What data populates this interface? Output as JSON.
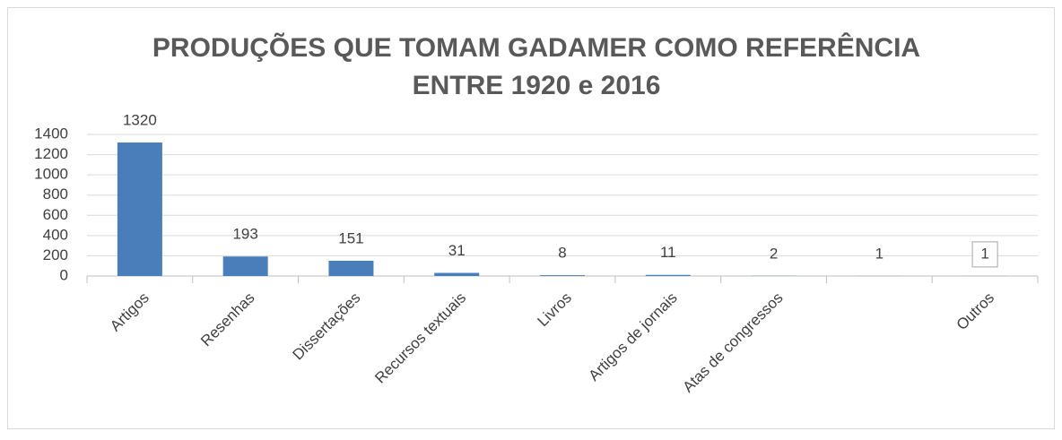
{
  "chart_data": {
    "type": "bar",
    "title": [
      "PRODUÇÕES QUE TOMAM GADAMER COMO REFERÊNCIA",
      "ENTRE 1920 e 2016"
    ],
    "categories": [
      "Artigos",
      "Resenhas",
      "Dissertações",
      "Recursos textuais",
      "Livros",
      "Artigos de jornais",
      "Atas de congressos",
      null,
      "Outros"
    ],
    "values": [
      1320,
      193,
      151,
      31,
      8,
      11,
      2,
      1,
      1
    ],
    "color": "#4a7ebb",
    "ylim": [
      0,
      1400
    ],
    "yticks": [
      0,
      200,
      400,
      600,
      800,
      1000,
      1200,
      1400
    ],
    "grid": true
  }
}
